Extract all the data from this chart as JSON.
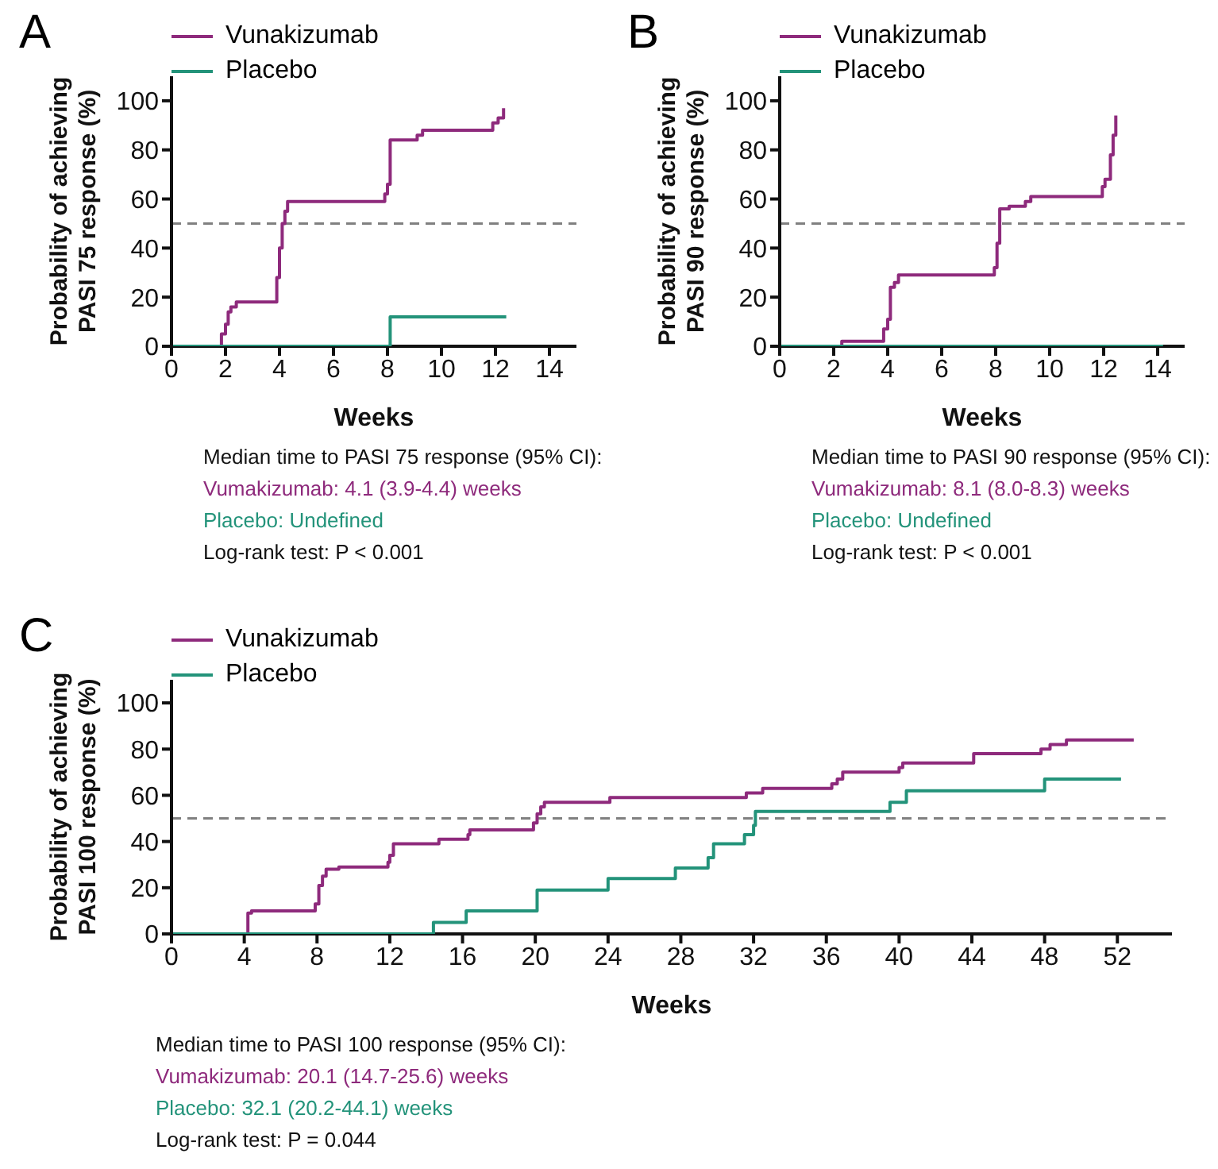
{
  "chart_data": [
    {
      "type": "step",
      "title": "A",
      "xlabel": "Weeks",
      "ylabel": "Probability of achieving\nPASI 75 response (%)",
      "xlim": [
        0,
        15
      ],
      "xticks": [
        0,
        2,
        4,
        6,
        8,
        10,
        12,
        14
      ],
      "ylim": [
        0,
        110
      ],
      "yticks": [
        0,
        20,
        40,
        60,
        80,
        100
      ],
      "grid": false,
      "legend": "top left",
      "ref_lines": [
        {
          "axis": "y",
          "value": 50,
          "color": "#808080",
          "line_style": "dashed"
        }
      ],
      "series": [
        {
          "name": "Vunakizumab",
          "color": "#8e2a7c",
          "x": [
            0,
            1.85,
            2.0,
            2.1,
            2.2,
            2.4,
            3.9,
            4.0,
            4.1,
            4.2,
            4.3,
            7.9,
            8.0,
            8.1,
            9.1,
            9.3,
            11.9,
            12.1,
            12.3
          ],
          "values": [
            0,
            5,
            9,
            14,
            16,
            18,
            28,
            40,
            50,
            55,
            59,
            62,
            66,
            84,
            86,
            88,
            91,
            93,
            97
          ]
        },
        {
          "name": "Placebo",
          "color": "#23937a",
          "x": [
            0,
            8.1,
            12.4
          ],
          "values": [
            0,
            12,
            12
          ]
        }
      ],
      "annotations": [
        "Median time to PASI 75 response (95% CI):",
        "Vumakizumab: 4.1 (3.9-4.4) weeks",
        "Placebo: Undefined",
        "Log-rank test: P < 0.001"
      ]
    },
    {
      "type": "step",
      "title": "B",
      "xlabel": "Weeks",
      "ylabel": "Probability of achieving\nPASI 90 response (%)",
      "xlim": [
        0,
        15
      ],
      "xticks": [
        0,
        2,
        4,
        6,
        8,
        10,
        12,
        14
      ],
      "ylim": [
        0,
        110
      ],
      "yticks": [
        0,
        20,
        40,
        60,
        80,
        100
      ],
      "grid": false,
      "legend": "top left",
      "ref_lines": [
        {
          "axis": "y",
          "value": 50,
          "color": "#808080",
          "line_style": "dashed"
        }
      ],
      "series": [
        {
          "name": "Vunakizumab",
          "color": "#8e2a7c",
          "x": [
            0,
            2.3,
            3.85,
            4.0,
            4.1,
            4.25,
            4.4,
            7.95,
            8.05,
            8.15,
            8.5,
            9.1,
            9.3,
            11.95,
            12.05,
            12.25,
            12.35,
            12.45
          ],
          "values": [
            0,
            2,
            7,
            11,
            24,
            26,
            29,
            32,
            42,
            56,
            57,
            59,
            61,
            65,
            68,
            78,
            86,
            94
          ]
        },
        {
          "name": "Placebo",
          "color": "#23937a",
          "x": [
            0,
            14.2
          ],
          "values": [
            0,
            0
          ]
        }
      ],
      "annotations": [
        "Median time to PASI 90 response (95% CI):",
        "Vumakizumab: 8.1 (8.0-8.3) weeks",
        "Placebo: Undefined",
        "Log-rank test: P < 0.001"
      ]
    },
    {
      "type": "step",
      "title": "C",
      "xlabel": "Weeks",
      "ylabel": "Probability of achieving\nPASI 100 response (%)",
      "xlim": [
        0,
        55
      ],
      "xticks": [
        0,
        4,
        8,
        12,
        16,
        20,
        24,
        28,
        32,
        36,
        40,
        44,
        48,
        52
      ],
      "ylim": [
        0,
        110
      ],
      "yticks": [
        0,
        20,
        40,
        60,
        80,
        100
      ],
      "grid": false,
      "legend": "top left",
      "ref_lines": [
        {
          "axis": "y",
          "value": 50,
          "color": "#808080",
          "line_style": "dashed"
        }
      ],
      "series": [
        {
          "name": "Vunakizumab",
          "color": "#8e2a7c",
          "x": [
            0,
            4.2,
            4.4,
            7.9,
            8.1,
            8.3,
            8.5,
            9.2,
            11.9,
            12.0,
            12.2,
            14.7,
            16.3,
            16.4,
            19.9,
            20.1,
            20.3,
            20.5,
            24.1,
            31.6,
            32.5,
            36.3,
            36.6,
            36.9,
            40.0,
            40.2,
            44.1,
            47.8,
            48.3,
            49.2,
            52.9
          ],
          "values": [
            0,
            9,
            10,
            13,
            21,
            25,
            28,
            29,
            31,
            34,
            39,
            41,
            43,
            45,
            48,
            52,
            55,
            57,
            59,
            61,
            63,
            65,
            67,
            70,
            72,
            74,
            78,
            80,
            82,
            84,
            84
          ]
        },
        {
          "name": "Placebo",
          "color": "#23937a",
          "x": [
            0,
            14.4,
            16.2,
            20.1,
            24.0,
            27.7,
            29.5,
            29.8,
            31.5,
            32.0,
            32.1,
            39.5,
            40.4,
            48.0,
            52.2
          ],
          "values": [
            0,
            5,
            10,
            19,
            24,
            28.5,
            33,
            39,
            43,
            47,
            53,
            57,
            62,
            67,
            67
          ]
        }
      ],
      "annotations": [
        "Median time to PASI 100 response (95% CI):",
        "Vumakizumab: 20.1 (14.7-25.6) weeks",
        "Placebo: 32.1 (20.2-44.1) weeks",
        "Log-rank test: P = 0.044"
      ]
    }
  ]
}
